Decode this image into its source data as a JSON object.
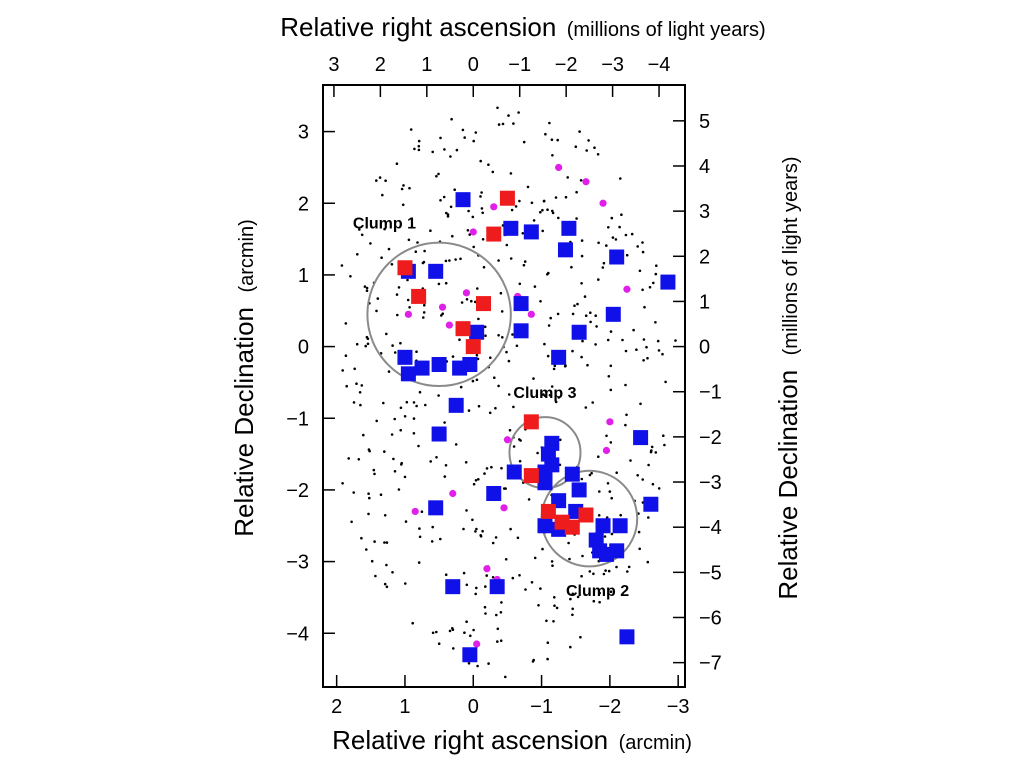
{
  "chart_data": {
    "type": "scatter",
    "colors": {
      "galaxy_dot": "#000000",
      "blue_marker": "#1010e8",
      "red_marker": "#ee1c1c",
      "magenta_marker": "#e020e8",
      "clump_circle": "#8a8a8a"
    },
    "axes": {
      "bottom": {
        "label_main": "Relative right ascension",
        "label_unit": "(arcmin)",
        "range": [
          2.2,
          -3.1
        ],
        "ticks": [
          2,
          1,
          0,
          -1,
          -2,
          -3
        ],
        "tick_labels": [
          "2",
          "1",
          "0",
          "−1",
          "−2",
          "−3"
        ]
      },
      "left": {
        "label_main": "Relative Declination",
        "label_unit": "(arcmin)",
        "range": [
          -4.75,
          3.65
        ],
        "ticks": [
          -4,
          -3,
          -2,
          -1,
          0,
          1,
          2,
          3
        ],
        "tick_labels": [
          "−4",
          "−3",
          "−2",
          "−1",
          "0",
          "1",
          "2",
          "3"
        ]
      },
      "top": {
        "label_main": "Relative right ascension",
        "label_unit": "(millions of light years)",
        "ticks": [
          3,
          2,
          1,
          0,
          -1,
          -2,
          -3,
          -4
        ],
        "tick_labels": [
          "3",
          "2",
          "1",
          "0",
          "−1",
          "−2",
          "−3",
          "−4"
        ],
        "arcmin_per_unit": 0.68
      },
      "right": {
        "label_main": "Relative Declination",
        "label_unit": "(millions of light years)",
        "ticks": [
          5,
          4,
          3,
          2,
          1,
          0,
          -1,
          -2,
          -3,
          -4,
          -5,
          -6,
          -7
        ],
        "tick_labels": [
          "5",
          "4",
          "3",
          "2",
          "1",
          "0",
          "−1",
          "−2",
          "−3",
          "−4",
          "−5",
          "−6",
          "−7"
        ],
        "arcmin_per_unit": 0.63
      }
    },
    "clumps": [
      {
        "label": "Clump 1",
        "center": [
          0.5,
          0.45
        ],
        "radius": 1.05,
        "label_pos": [
          1.3,
          1.65
        ]
      },
      {
        "label": "Clump 3",
        "center": [
          -1.05,
          -1.48
        ],
        "radius": 0.52,
        "label_pos": [
          -1.05,
          -0.72
        ]
      },
      {
        "label": "Clump 2",
        "center": [
          -1.7,
          -2.4
        ],
        "radius": 0.7,
        "label_pos": [
          -1.82,
          -3.48
        ]
      }
    ],
    "series": [
      {
        "marker": "blue-square",
        "points": [
          [
            0.15,
            2.05
          ],
          [
            -0.55,
            1.65
          ],
          [
            -0.85,
            1.6
          ],
          [
            -1.4,
            1.65
          ],
          [
            -1.35,
            1.35
          ],
          [
            -2.1,
            1.25
          ],
          [
            -2.85,
            0.9
          ],
          [
            0.95,
            1.05
          ],
          [
            0.55,
            1.05
          ],
          [
            -0.7,
            0.6
          ],
          [
            -2.05,
            0.45
          ],
          [
            -1.55,
            0.2
          ],
          [
            -0.7,
            0.22
          ],
          [
            -0.05,
            0.2
          ],
          [
            1.0,
            -0.15
          ],
          [
            0.95,
            -0.38
          ],
          [
            0.75,
            -0.3
          ],
          [
            0.5,
            -0.25
          ],
          [
            0.2,
            -0.3
          ],
          [
            0.05,
            -0.25
          ],
          [
            -1.25,
            -0.15
          ],
          [
            0.25,
            -0.82
          ],
          [
            0.5,
            -1.22
          ],
          [
            -1.15,
            -1.35
          ],
          [
            -1.1,
            -1.5
          ],
          [
            -1.15,
            -1.65
          ],
          [
            -1.05,
            -1.75
          ],
          [
            -0.6,
            -1.75
          ],
          [
            -2.45,
            -1.27
          ],
          [
            -0.3,
            -2.05
          ],
          [
            -1.05,
            -1.9
          ],
          [
            -1.45,
            -1.78
          ],
          [
            -1.55,
            -2.0
          ],
          [
            -1.25,
            -2.15
          ],
          [
            -1.05,
            -2.5
          ],
          [
            -1.25,
            -2.55
          ],
          [
            -1.5,
            -2.3
          ],
          [
            -1.9,
            -2.5
          ],
          [
            -2.15,
            -2.5
          ],
          [
            -1.8,
            -2.7
          ],
          [
            -1.85,
            -2.85
          ],
          [
            -1.95,
            -2.9
          ],
          [
            -2.1,
            -2.85
          ],
          [
            -2.6,
            -2.2
          ],
          [
            0.55,
            -2.25
          ],
          [
            0.3,
            -3.35
          ],
          [
            -0.35,
            -3.35
          ],
          [
            -2.25,
            -4.05
          ],
          [
            0.05,
            -4.3
          ]
        ]
      },
      {
        "marker": "red-square",
        "points": [
          [
            -0.5,
            2.07
          ],
          [
            -0.3,
            1.57
          ],
          [
            1.0,
            1.1
          ],
          [
            0.8,
            0.7
          ],
          [
            -0.15,
            0.6
          ],
          [
            0.15,
            0.25
          ],
          [
            0.0,
            0.0
          ],
          [
            -0.85,
            -1.05
          ],
          [
            -0.85,
            -1.8
          ],
          [
            -1.1,
            -2.3
          ],
          [
            -1.3,
            -2.45
          ],
          [
            -1.45,
            -2.52
          ],
          [
            -1.65,
            -2.35
          ]
        ]
      },
      {
        "marker": "magenta-dot",
        "points": [
          [
            -1.25,
            2.5
          ],
          [
            -1.65,
            2.3
          ],
          [
            -1.9,
            2.0
          ],
          [
            -0.3,
            1.95
          ],
          [
            -0.55,
            1.7
          ],
          [
            0.0,
            1.6
          ],
          [
            0.1,
            0.75
          ],
          [
            -0.65,
            0.7
          ],
          [
            0.45,
            0.55
          ],
          [
            0.95,
            0.45
          ],
          [
            -0.1,
            0.6
          ],
          [
            0.35,
            0.3
          ],
          [
            -2.25,
            0.8
          ],
          [
            -0.85,
            0.45
          ],
          [
            -2.0,
            -1.05
          ],
          [
            -0.5,
            -1.3
          ],
          [
            -1.95,
            -1.45
          ],
          [
            0.85,
            -2.3
          ],
          [
            0.3,
            -2.05
          ],
          [
            -0.45,
            -2.25
          ],
          [
            -0.2,
            -3.1
          ],
          [
            -0.35,
            -3.25
          ],
          [
            -0.05,
            -4.15
          ]
        ]
      }
    ]
  }
}
